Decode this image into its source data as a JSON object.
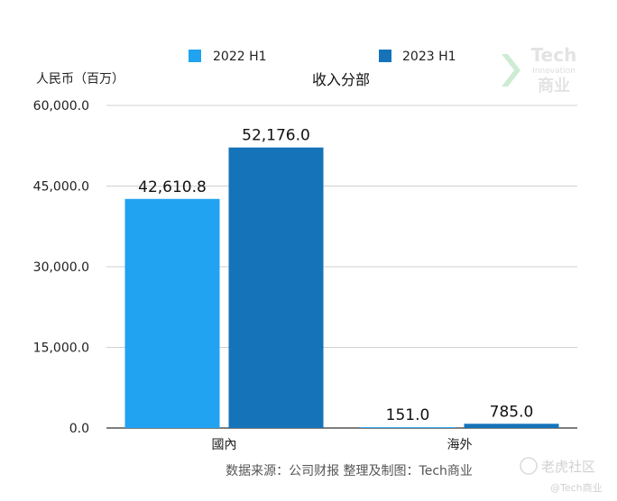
{
  "chart_data": {
    "type": "bar",
    "title": "收入分部",
    "ylabel": "人民币（百万）",
    "xlabel": "",
    "categories": [
      "國內",
      "海外"
    ],
    "series": [
      {
        "name": "2022 H1",
        "values": [
          42610.8,
          151.0
        ],
        "labels": [
          "42,610.8",
          "151.0"
        ],
        "color": "#21a3f1"
      },
      {
        "name": "2023 H1",
        "values": [
          52176.0,
          785.0
        ],
        "labels": [
          "52,176.0",
          "785.0"
        ],
        "color": "#1473b9"
      }
    ],
    "ylim": [
      0,
      60000
    ],
    "yticks": [
      0,
      15000,
      30000,
      45000,
      60000
    ],
    "ytick_labels": [
      "0.0",
      "15,000.0",
      "30,000.0",
      "45,000.0",
      "60,000.0"
    ],
    "grid": true,
    "legend_position": "top"
  },
  "source_note": "数据来源：公司财报 整理及制图：Tech商业",
  "watermark": {
    "logo_top": "Tech",
    "logo_mid": "Innovation",
    "logo_bottom": "商业",
    "site": "老虎社区",
    "handle": "@Tech商业"
  }
}
